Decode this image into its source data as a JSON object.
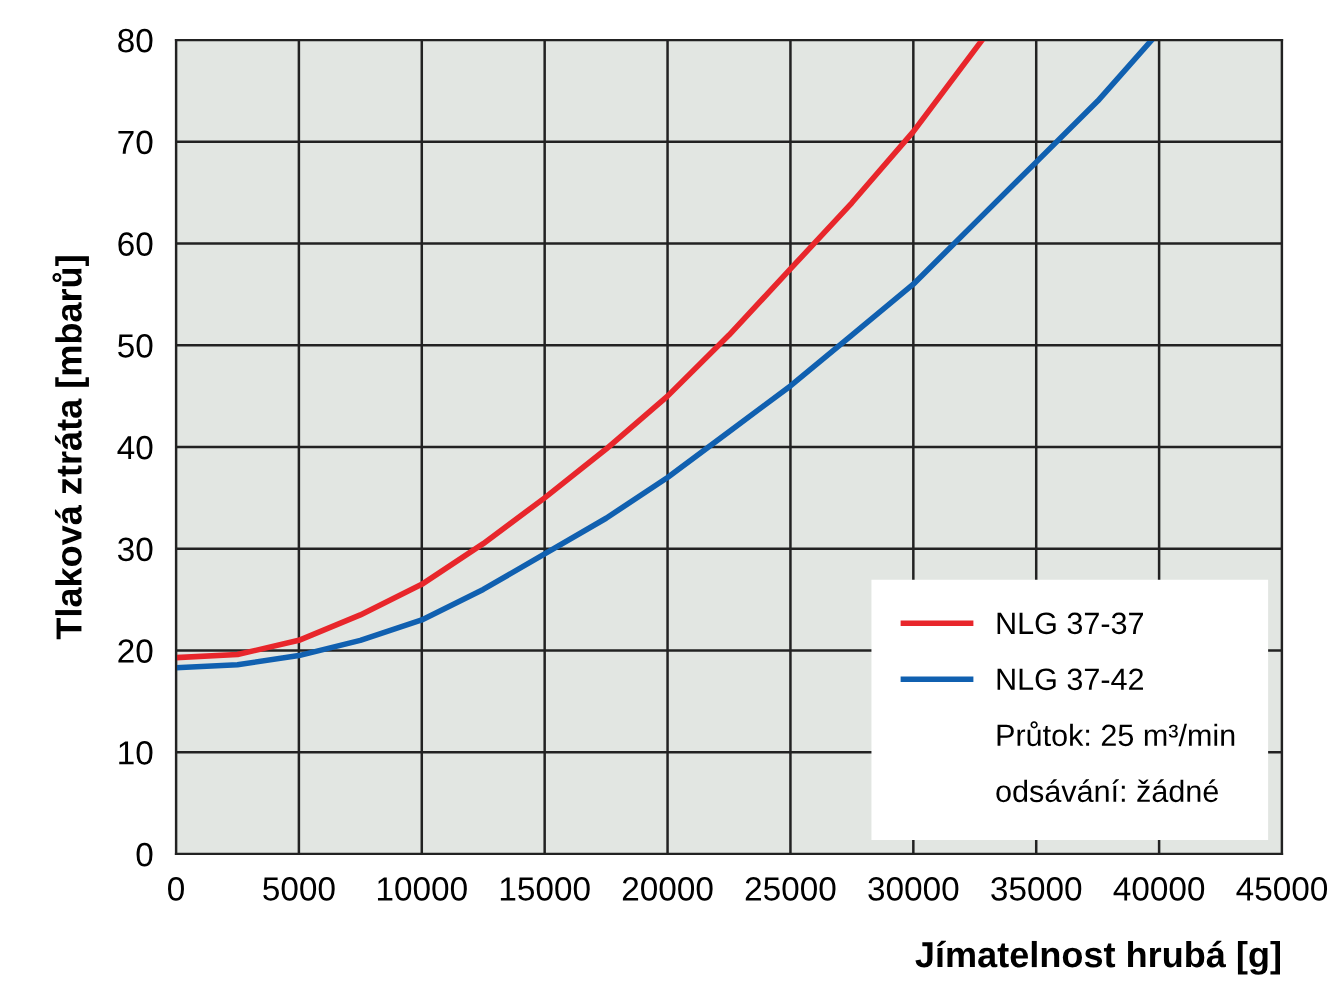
{
  "chart_data": {
    "type": "line",
    "xlabel": "Jímatelnost hrubá [g]",
    "ylabel": "Tlaková ztráta [mbarů]",
    "xlim": [
      0,
      45000
    ],
    "ylim": [
      0,
      80
    ],
    "xticks": [
      0,
      5000,
      10000,
      15000,
      20000,
      25000,
      30000,
      35000,
      40000,
      45000
    ],
    "yticks": [
      0,
      10,
      20,
      30,
      40,
      50,
      60,
      70,
      80
    ],
    "grid": true,
    "legend": "bottom right",
    "line_style": "solid",
    "marker": "none",
    "series": [
      {
        "name": "NLG 37-37",
        "color": "#e8262b",
        "x": [
          0,
          2500,
          5000,
          7500,
          10000,
          12500,
          15000,
          17500,
          20000,
          22500,
          25000,
          27500,
          30000,
          32800
        ],
        "values": [
          19.3,
          19.6,
          21,
          23.5,
          26.5,
          30.5,
          35,
          39.8,
          45,
          51,
          57.5,
          64,
          71,
          80
        ]
      },
      {
        "name": "NLG 37-42",
        "color": "#1060b0",
        "x": [
          0,
          2500,
          5000,
          7500,
          10000,
          12500,
          15000,
          17500,
          20000,
          22500,
          25000,
          27500,
          30000,
          32500,
          35000,
          37500,
          39700
        ],
        "values": [
          18.3,
          18.6,
          19.5,
          21,
          23,
          26,
          29.5,
          33,
          37,
          41.5,
          46,
          51,
          56,
          62,
          68,
          74,
          80
        ]
      }
    ],
    "annotations": [
      "Průtok: 25 m³/min",
      "odsávání: žádné"
    ]
  }
}
